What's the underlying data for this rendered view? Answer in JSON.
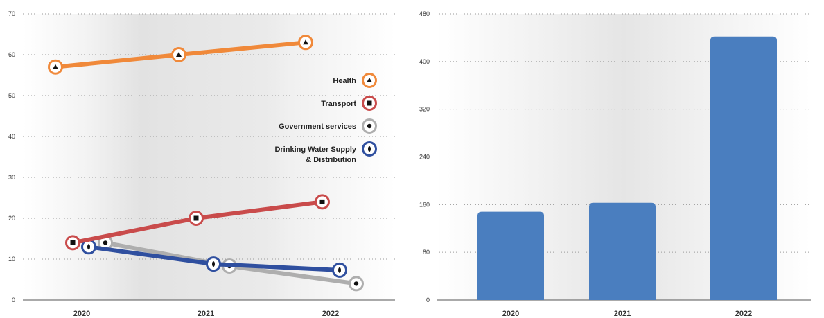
{
  "chart_data": [
    {
      "type": "line",
      "title": "",
      "xlabel": "",
      "ylabel": "",
      "categories": [
        "2020",
        "2021",
        "2022"
      ],
      "ylim": [
        0,
        70
      ],
      "yticks": [
        0,
        10,
        20,
        30,
        40,
        50,
        60,
        70
      ],
      "grid": true,
      "legend_position": "right",
      "series": [
        {
          "name": "Health",
          "values": [
            57,
            60,
            63
          ],
          "color": "#f0893a",
          "marker": "triangle"
        },
        {
          "name": "Transport",
          "values": [
            14,
            20,
            24
          ],
          "color": "#c94b4b",
          "marker": "square"
        },
        {
          "name": "Government services",
          "values": [
            14,
            8.3,
            4
          ],
          "color": "#aeaeae",
          "marker": "circle"
        },
        {
          "name": "Drinking Water Supply & Distribution",
          "values": [
            13,
            8.8,
            7.3
          ],
          "color": "#2f4f9f",
          "marker": "ellipse"
        }
      ]
    },
    {
      "type": "bar",
      "title": "",
      "xlabel": "",
      "ylabel": "",
      "categories": [
        "2020",
        "2021",
        "2022"
      ],
      "values": [
        148,
        163,
        442
      ],
      "ylim": [
        0,
        480
      ],
      "yticks": [
        0,
        80,
        160,
        240,
        320,
        400,
        480
      ],
      "grid": true,
      "color": "#4a7ebf"
    }
  ]
}
